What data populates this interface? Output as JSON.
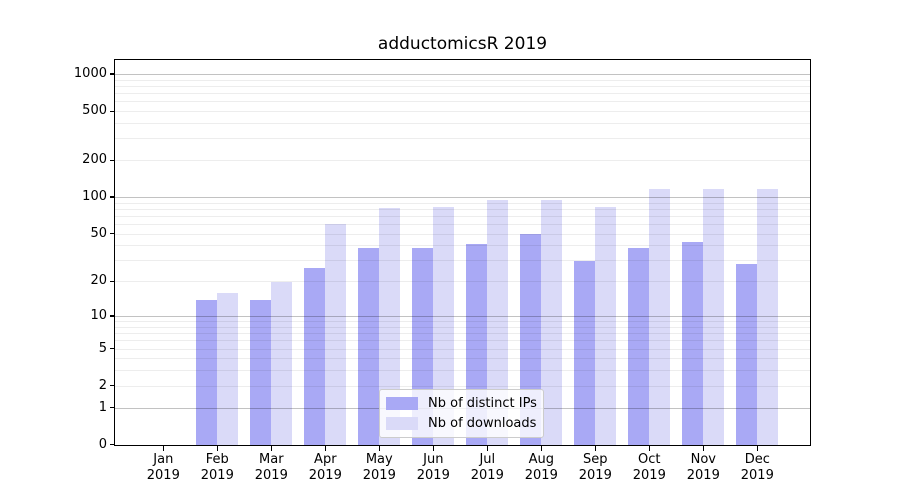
{
  "title": "adductomicsR 2019",
  "x_axis": {
    "months": [
      "Jan",
      "Feb",
      "Mar",
      "Apr",
      "May",
      "Jun",
      "Jul",
      "Aug",
      "Sep",
      "Oct",
      "Nov",
      "Dec"
    ],
    "year": "2019"
  },
  "y_axis": {
    "ticks": [
      0,
      1,
      2,
      5,
      10,
      20,
      50,
      100,
      200,
      500,
      1000
    ]
  },
  "legend": {
    "items": [
      "Nb of distinct IPs",
      "Nb of downloads"
    ]
  },
  "chart_data": {
    "type": "bar",
    "title": "adductomicsR 2019",
    "categories": [
      "Jan 2019",
      "Feb 2019",
      "Mar 2019",
      "Apr 2019",
      "May 2019",
      "Jun 2019",
      "Jul 2019",
      "Aug 2019",
      "Sep 2019",
      "Oct 2019",
      "Nov 2019",
      "Dec 2019"
    ],
    "series": [
      {
        "name": "Nb of distinct IPs",
        "color": "#A9A9F5",
        "values": [
          0,
          14,
          14,
          26,
          38,
          38,
          41,
          50,
          30,
          38,
          43,
          28
        ]
      },
      {
        "name": "Nb of downloads",
        "color": "#DADAF8",
        "values": [
          0,
          16,
          20,
          60,
          82,
          84,
          96,
          96,
          83,
          116,
          116,
          118
        ]
      }
    ],
    "xlabel": "",
    "ylabel": "",
    "y_scale": "log10(1+x)",
    "y_ticks": [
      0,
      1,
      2,
      5,
      10,
      20,
      50,
      100,
      200,
      500,
      1000
    ],
    "ylim": [
      0,
      1300
    ],
    "grid": "horizontal major (decades) + minor log lines",
    "legend_position": "lower center"
  }
}
